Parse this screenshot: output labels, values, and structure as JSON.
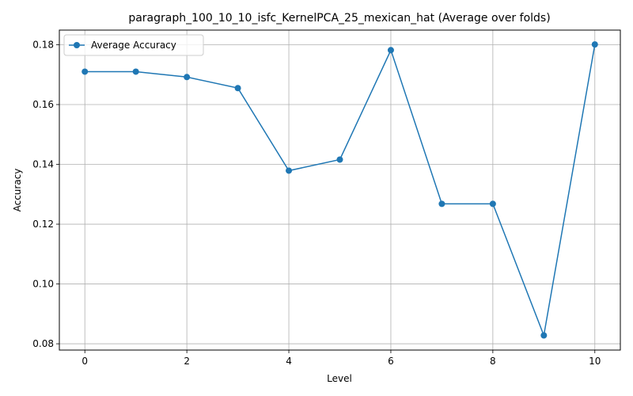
{
  "chart_data": {
    "type": "line",
    "title": "paragraph_100_10_10_isfc_KernelPCA_25_mexican_hat (Average over folds)",
    "xlabel": "Level",
    "ylabel": "Accuracy",
    "x": [
      0,
      1,
      2,
      3,
      4,
      5,
      6,
      7,
      8,
      9,
      10
    ],
    "series": [
      {
        "name": "Average Accuracy",
        "color": "#1f77b4",
        "values": [
          0.171,
          0.171,
          0.1692,
          0.1655,
          0.1379,
          0.1416,
          0.1782,
          0.1268,
          0.1268,
          0.0828,
          0.1801
        ]
      }
    ],
    "xlim": [
      -0.5,
      10.5
    ],
    "ylim": [
      0.0779,
      0.1849
    ],
    "xticks": [
      0,
      2,
      4,
      6,
      8,
      10
    ],
    "yticks": [
      0.08,
      0.1,
      0.12,
      0.14,
      0.16,
      0.18
    ],
    "xtick_labels": [
      "0",
      "2",
      "4",
      "6",
      "8",
      "10"
    ],
    "ytick_labels": [
      "0.08",
      "0.10",
      "0.12",
      "0.14",
      "0.16",
      "0.18"
    ],
    "grid": true,
    "legend_position": "top-left"
  }
}
